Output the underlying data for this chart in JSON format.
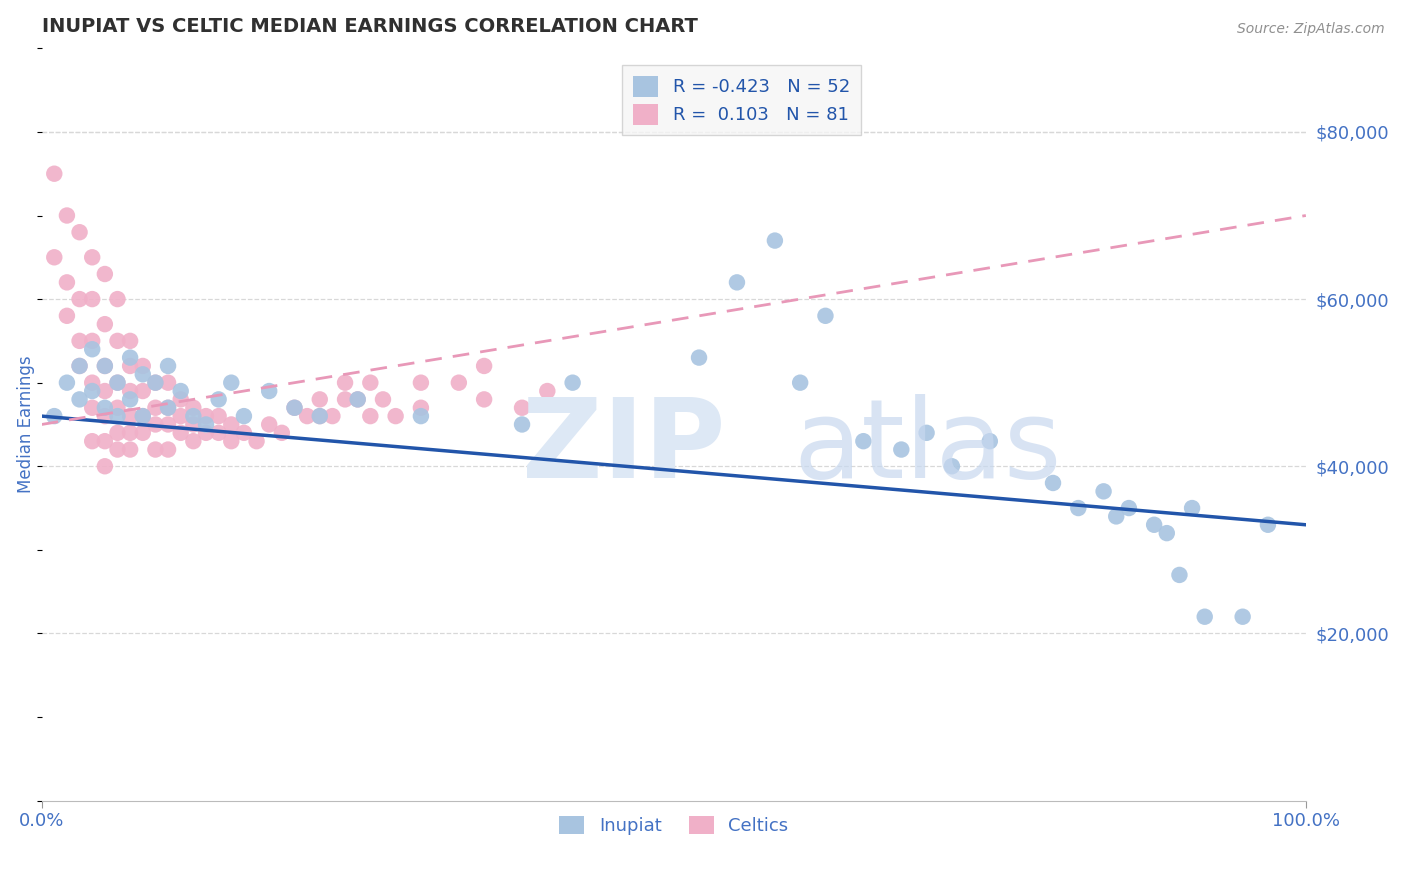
{
  "title": "INUPIAT VS CELTIC MEDIAN EARNINGS CORRELATION CHART",
  "source": "Source: ZipAtlas.com",
  "ylabel": "Median Earnings",
  "xlim": [
    0,
    1.0
  ],
  "ylim": [
    0,
    90000
  ],
  "yticks": [
    20000,
    40000,
    60000,
    80000
  ],
  "ytick_labels": [
    "$20,000",
    "$40,000",
    "$60,000",
    "$80,000"
  ],
  "xtick_labels": [
    "0.0%",
    "100.0%"
  ],
  "inupiat_color": "#a8c4e0",
  "celtics_color": "#f0b0c8",
  "inupiat_line_color": "#2255aa",
  "celtics_line_color": "#e898b8",
  "axis_color": "#4472c4",
  "title_color": "#303030",
  "source_color": "#909090",
  "background_color": "#ffffff",
  "grid_color": "#d8d8d8",
  "legend_box_color": "#f5f5f5",
  "legend_border_color": "#cccccc",
  "inupiat_R": -0.423,
  "inupiat_N": 52,
  "celtics_R": 0.103,
  "celtics_N": 81,
  "inupiat_x": [
    0.01,
    0.02,
    0.03,
    0.03,
    0.04,
    0.04,
    0.05,
    0.05,
    0.06,
    0.06,
    0.07,
    0.07,
    0.08,
    0.08,
    0.09,
    0.1,
    0.1,
    0.11,
    0.12,
    0.13,
    0.14,
    0.15,
    0.16,
    0.18,
    0.2,
    0.22,
    0.25,
    0.3,
    0.38,
    0.42,
    0.52,
    0.55,
    0.58,
    0.6,
    0.62,
    0.65,
    0.68,
    0.7,
    0.72,
    0.75,
    0.8,
    0.82,
    0.84,
    0.85,
    0.86,
    0.88,
    0.89,
    0.9,
    0.91,
    0.92,
    0.95,
    0.97
  ],
  "inupiat_y": [
    46000,
    50000,
    52000,
    48000,
    54000,
    49000,
    47000,
    52000,
    50000,
    46000,
    53000,
    48000,
    51000,
    46000,
    50000,
    52000,
    47000,
    49000,
    46000,
    45000,
    48000,
    50000,
    46000,
    49000,
    47000,
    46000,
    48000,
    46000,
    45000,
    50000,
    53000,
    62000,
    67000,
    50000,
    58000,
    43000,
    42000,
    44000,
    40000,
    43000,
    38000,
    35000,
    37000,
    34000,
    35000,
    33000,
    32000,
    27000,
    35000,
    22000,
    22000,
    33000
  ],
  "celtics_x": [
    0.01,
    0.01,
    0.02,
    0.02,
    0.02,
    0.03,
    0.03,
    0.03,
    0.03,
    0.04,
    0.04,
    0.04,
    0.04,
    0.04,
    0.04,
    0.05,
    0.05,
    0.05,
    0.05,
    0.05,
    0.05,
    0.05,
    0.06,
    0.06,
    0.06,
    0.06,
    0.06,
    0.06,
    0.07,
    0.07,
    0.07,
    0.07,
    0.07,
    0.07,
    0.08,
    0.08,
    0.08,
    0.08,
    0.09,
    0.09,
    0.09,
    0.09,
    0.1,
    0.1,
    0.1,
    0.1,
    0.11,
    0.11,
    0.11,
    0.12,
    0.12,
    0.12,
    0.13,
    0.13,
    0.14,
    0.14,
    0.15,
    0.15,
    0.16,
    0.17,
    0.18,
    0.19,
    0.2,
    0.21,
    0.22,
    0.23,
    0.24,
    0.25,
    0.26,
    0.28,
    0.3,
    0.33,
    0.35,
    0.38,
    0.4,
    0.22,
    0.24,
    0.26,
    0.27,
    0.3,
    0.35
  ],
  "celtics_y": [
    75000,
    65000,
    70000,
    62000,
    58000,
    68000,
    60000,
    55000,
    52000,
    65000,
    60000,
    55000,
    50000,
    47000,
    43000,
    63000,
    57000,
    52000,
    49000,
    46000,
    43000,
    40000,
    60000,
    55000,
    50000,
    47000,
    44000,
    42000,
    55000,
    52000,
    49000,
    46000,
    44000,
    42000,
    52000,
    49000,
    46000,
    44000,
    50000,
    47000,
    45000,
    42000,
    50000,
    47000,
    45000,
    42000,
    48000,
    46000,
    44000,
    47000,
    45000,
    43000,
    46000,
    44000,
    46000,
    44000,
    45000,
    43000,
    44000,
    43000,
    45000,
    44000,
    47000,
    46000,
    48000,
    46000,
    50000,
    48000,
    46000,
    46000,
    47000,
    50000,
    48000,
    47000,
    49000,
    46000,
    48000,
    50000,
    48000,
    50000,
    52000
  ]
}
